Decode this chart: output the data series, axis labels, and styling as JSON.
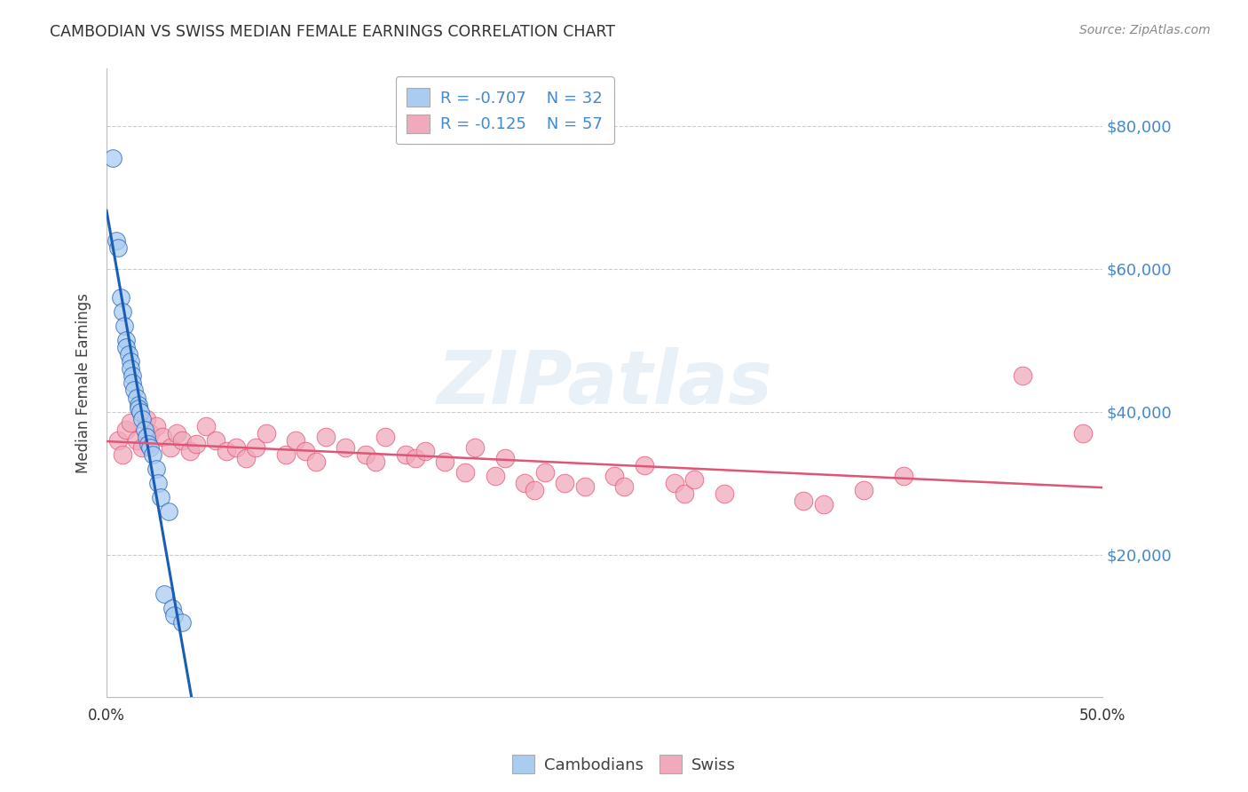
{
  "title": "CAMBODIAN VS SWISS MEDIAN FEMALE EARNINGS CORRELATION CHART",
  "source": "Source: ZipAtlas.com",
  "ylabel": "Median Female Earnings",
  "watermark": "ZIPatlas",
  "legend_cambodian_R": "-0.707",
  "legend_cambodian_N": "32",
  "legend_swiss_R": "-0.125",
  "legend_swiss_N": "57",
  "cambodian_color": "#aaccf0",
  "swiss_color": "#f0aabb",
  "line_cambodian_color": "#1a5db5",
  "line_swiss_color": "#e05575",
  "title_color": "#303030",
  "source_color": "#888888",
  "axis_label_color": "#404040",
  "tick_label_right_color": "#4488cc",
  "grid_color": "#cccccc",
  "ytick_labels": [
    "$20,000",
    "$40,000",
    "$60,000",
    "$80,000"
  ],
  "ytick_values": [
    20000,
    40000,
    60000,
    80000
  ],
  "ylim": [
    0,
    88000
  ],
  "xlim": [
    0.0,
    0.5
  ],
  "cambodian_x": [
    0.003,
    0.005,
    0.006,
    0.007,
    0.008,
    0.009,
    0.01,
    0.01,
    0.011,
    0.012,
    0.012,
    0.013,
    0.013,
    0.014,
    0.015,
    0.016,
    0.016,
    0.017,
    0.018,
    0.019,
    0.02,
    0.021,
    0.022,
    0.023,
    0.025,
    0.026,
    0.027,
    0.029,
    0.031,
    0.033,
    0.034,
    0.038
  ],
  "cambodian_y": [
    75500,
    64000,
    63000,
    56000,
    54000,
    52000,
    50000,
    49000,
    48000,
    47000,
    46000,
    45000,
    44000,
    43000,
    42000,
    41000,
    40500,
    40000,
    39000,
    37500,
    36500,
    35500,
    35000,
    34000,
    32000,
    30000,
    28000,
    14500,
    26000,
    12500,
    11500,
    10500
  ],
  "swiss_x": [
    0.006,
    0.008,
    0.01,
    0.012,
    0.015,
    0.018,
    0.02,
    0.022,
    0.025,
    0.028,
    0.032,
    0.035,
    0.038,
    0.042,
    0.045,
    0.05,
    0.055,
    0.06,
    0.065,
    0.07,
    0.075,
    0.08,
    0.09,
    0.095,
    0.1,
    0.105,
    0.11,
    0.12,
    0.13,
    0.135,
    0.14,
    0.15,
    0.155,
    0.16,
    0.17,
    0.18,
    0.185,
    0.195,
    0.2,
    0.21,
    0.215,
    0.22,
    0.23,
    0.24,
    0.255,
    0.26,
    0.27,
    0.285,
    0.29,
    0.295,
    0.31,
    0.35,
    0.36,
    0.38,
    0.4,
    0.46,
    0.49
  ],
  "swiss_y": [
    36000,
    34000,
    37500,
    38500,
    36000,
    35000,
    39000,
    37000,
    38000,
    36500,
    35000,
    37000,
    36000,
    34500,
    35500,
    38000,
    36000,
    34500,
    35000,
    33500,
    35000,
    37000,
    34000,
    36000,
    34500,
    33000,
    36500,
    35000,
    34000,
    33000,
    36500,
    34000,
    33500,
    34500,
    33000,
    31500,
    35000,
    31000,
    33500,
    30000,
    29000,
    31500,
    30000,
    29500,
    31000,
    29500,
    32500,
    30000,
    28500,
    30500,
    28500,
    27500,
    27000,
    29000,
    31000,
    45000,
    37000
  ]
}
